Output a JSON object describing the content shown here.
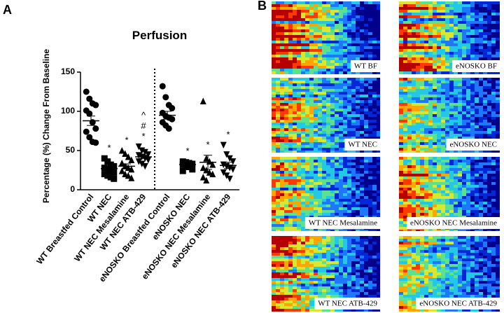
{
  "panel_a_label": "A",
  "panel_b_label": "B",
  "chart_data": {
    "type": "dotplot",
    "title": "Perfusion",
    "y_label": "Percentage (%) Change From Baseline",
    "ylim": [
      0,
      150
    ],
    "yticks": [
      0,
      50,
      100,
      150
    ],
    "color": "#000000",
    "groups": [
      {
        "name": "WT Breastfed Control",
        "marker": "circle",
        "values": [
          125,
          116,
          110,
          108,
          101,
          97,
          86,
          78,
          74,
          67,
          61,
          60
        ],
        "mean": 88,
        "sem": 6,
        "marks": null
      },
      {
        "name": "WT NEC",
        "marker": "square",
        "values": [
          40,
          36,
          32,
          30,
          28,
          26,
          24,
          22,
          20,
          18,
          16,
          14
        ],
        "mean": 27,
        "sem": 3,
        "marks": [
          "*"
        ]
      },
      {
        "name": "WT NEC Mesalamine",
        "marker": "triangle",
        "values": [
          50,
          46,
          42,
          38,
          34,
          30,
          28,
          26,
          24,
          20,
          18,
          15
        ],
        "mean": 30,
        "sem": 3,
        "marks": [
          "*"
        ]
      },
      {
        "name": "WT NEC ATB-429",
        "marker": "triangle-down",
        "values": [
          55,
          50,
          48,
          45,
          44,
          42,
          40,
          38,
          36,
          33,
          30
        ],
        "mean": 42,
        "sem": 2,
        "marks": [
          "*",
          "#",
          "^"
        ]
      },
      {
        "name": "eNOSKO Breastfed Control",
        "marker": "circle",
        "values": [
          132,
          118,
          108,
          104,
          98,
          94,
          92,
          90,
          86,
          82,
          78
        ],
        "mean": 95,
        "sem": 5,
        "marks": null
      },
      {
        "name": "eNOSKO NEC",
        "marker": "square",
        "values": [
          36,
          35,
          34,
          33,
          32,
          30,
          29,
          26,
          24
        ],
        "mean": 32,
        "sem": 2,
        "marks": [
          "*"
        ]
      },
      {
        "name": "eNOSKO NEC Mesalamine",
        "marker": "triangle",
        "values": [
          113,
          40,
          36,
          32,
          28,
          25,
          22,
          20,
          16,
          12
        ],
        "mean": 35,
        "sem": 9,
        "marks": [
          "*"
        ]
      },
      {
        "name": "eNOSKO NEC ATB-429",
        "marker": "triangle-down",
        "values": [
          57,
          45,
          40,
          36,
          32,
          30,
          28,
          26,
          22,
          18,
          14
        ],
        "mean": 31,
        "sem": 4,
        "marks": [
          "*"
        ]
      }
    ]
  },
  "heatmaps": [
    "WT BF",
    "eNOSKO BF",
    "WT NEC",
    "eNOSKO NEC",
    "WT NEC Mesalamine",
    "eNOSKO NEC Mesalamine",
    "WT NEC ATB-429",
    "eNOSKO NEC ATB-429"
  ]
}
